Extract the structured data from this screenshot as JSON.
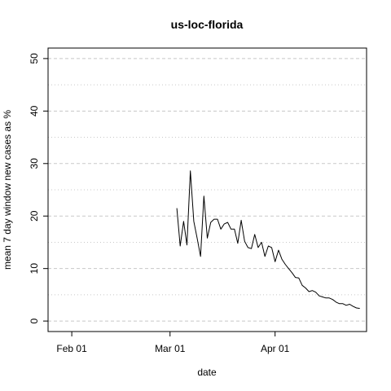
{
  "chart_data": {
    "type": "line",
    "title": "us-loc-florida",
    "xlabel": "date",
    "ylabel": "mean  7  day window new cases as %",
    "x_ticks": [
      "Feb 01",
      "Mar 01",
      "Apr 01"
    ],
    "x_tick_dates": [
      "2020-02-01",
      "2020-03-01",
      "2020-04-01"
    ],
    "xlim": [
      "2020-01-25",
      "2020-04-28"
    ],
    "y_ticks": [
      0,
      10,
      20,
      30,
      40,
      50
    ],
    "ylim": [
      -2,
      52
    ],
    "grid": true,
    "series": [
      {
        "color": "#000000",
        "x": [
          "2020-03-03",
          "2020-03-04",
          "2020-03-05",
          "2020-03-06",
          "2020-03-07",
          "2020-03-08",
          "2020-03-09",
          "2020-03-10",
          "2020-03-11",
          "2020-03-12",
          "2020-03-13",
          "2020-03-14",
          "2020-03-15",
          "2020-03-16",
          "2020-03-17",
          "2020-03-18",
          "2020-03-19",
          "2020-03-20",
          "2020-03-21",
          "2020-03-22",
          "2020-03-23",
          "2020-03-24",
          "2020-03-25",
          "2020-03-26",
          "2020-03-27",
          "2020-03-28",
          "2020-03-29",
          "2020-03-30",
          "2020-03-31",
          "2020-04-01",
          "2020-04-02",
          "2020-04-03",
          "2020-04-04",
          "2020-04-05",
          "2020-04-06",
          "2020-04-07",
          "2020-04-08",
          "2020-04-09",
          "2020-04-10",
          "2020-04-11",
          "2020-04-12",
          "2020-04-13",
          "2020-04-14",
          "2020-04-15",
          "2020-04-16",
          "2020-04-17",
          "2020-04-18",
          "2020-04-19",
          "2020-04-20",
          "2020-04-21",
          "2020-04-22",
          "2020-04-23",
          "2020-04-24",
          "2020-04-25",
          "2020-04-26"
        ],
        "y": [
          21.5,
          14.3,
          19.0,
          14.5,
          28.6,
          19.0,
          15.8,
          12.3,
          23.8,
          15.8,
          18.8,
          19.4,
          19.4,
          17.5,
          18.5,
          18.8,
          17.5,
          17.5,
          14.8,
          19.2,
          15.2,
          14.0,
          13.8,
          16.5,
          14.0,
          15.0,
          12.3,
          14.3,
          14.0,
          11.3,
          13.5,
          11.8,
          10.8,
          10.0,
          9.2,
          8.3,
          8.2,
          6.8,
          6.3,
          5.6,
          5.8,
          5.5,
          4.8,
          4.6,
          4.4,
          4.4,
          4.1,
          3.6,
          3.3,
          3.3,
          3.0,
          3.2,
          2.8,
          2.5,
          2.4
        ]
      }
    ]
  }
}
